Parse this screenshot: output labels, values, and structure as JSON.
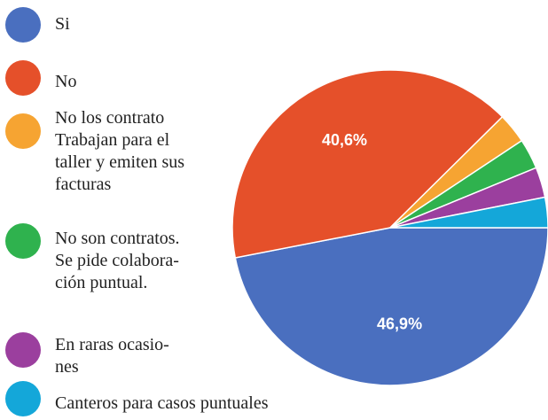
{
  "chart_data": {
    "type": "pie",
    "categories": [
      "Si",
      "No",
      "No los contrato\nTrabajan para el\ntaller y emiten sus\nfacturas",
      "No son contratos.\nSe pide colabora-\nción puntual.",
      "En raras ocasio-\nnes",
      "Canteros para casos puntuales"
    ],
    "values": [
      46.9,
      40.6,
      3.1,
      3.1,
      3.1,
      3.1
    ],
    "value_labels": [
      "46,9%",
      "40,6%",
      null,
      null,
      null,
      null
    ],
    "colors": [
      "#4a6fbf",
      "#e5502a",
      "#f6a432",
      "#2fb24e",
      "#9b3f9e",
      "#14a7d9"
    ]
  }
}
